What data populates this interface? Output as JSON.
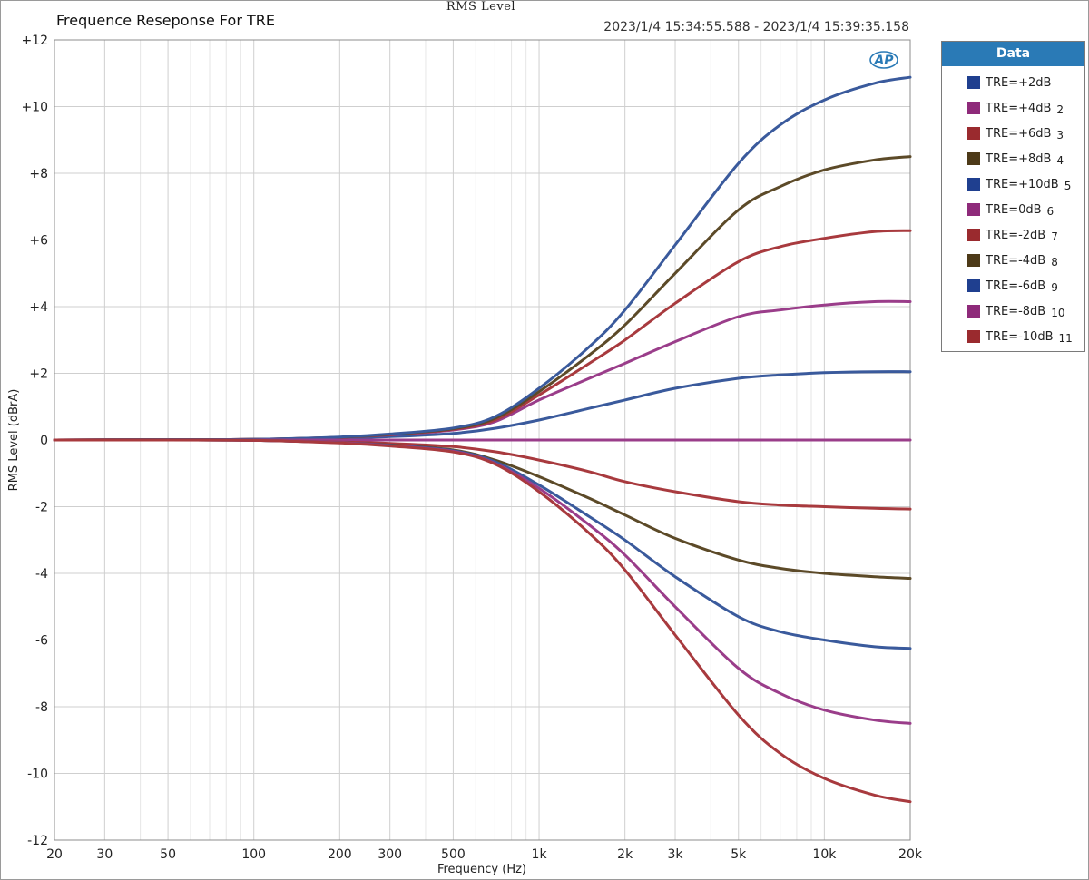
{
  "header": {
    "title": "Frequence Reseponse For TRE",
    "center_title": "RMS Level",
    "timestamp": "2023/1/4 15:34:55.588 - 2023/1/4 15:39:35.158",
    "logo_text": "AP"
  },
  "legend": {
    "title": "Data",
    "items": [
      {
        "label": "TRE=+2dB",
        "num": "",
        "color": "#1f3f8f"
      },
      {
        "label": "TRE=+4dB",
        "num": "2",
        "color": "#8e2a7a"
      },
      {
        "label": "TRE=+6dB",
        "num": "3",
        "color": "#9a2a2e"
      },
      {
        "label": "TRE=+8dB",
        "num": "4",
        "color": "#4d3a18"
      },
      {
        "label": "TRE=+10dB",
        "num": "5",
        "color": "#1f3f8f"
      },
      {
        "label": "TRE=0dB",
        "num": "6",
        "color": "#8e2a7a"
      },
      {
        "label": "TRE=-2dB",
        "num": "7",
        "color": "#9a2a2e"
      },
      {
        "label": "TRE=-4dB",
        "num": "8",
        "color": "#4d3a18"
      },
      {
        "label": "TRE=-6dB",
        "num": "9",
        "color": "#1f3f8f"
      },
      {
        "label": "TRE=-8dB",
        "num": "10",
        "color": "#8e2a7a"
      },
      {
        "label": "TRE=-10dB",
        "num": "11",
        "color": "#9a2a2e"
      }
    ]
  },
  "chart_data": {
    "type": "line",
    "title": "Frequence Reseponse For TRE",
    "xlabel": "Frequency (Hz)",
    "ylabel": "RMS Level (dBrA)",
    "x_scale": "log",
    "xlim": [
      20,
      20000
    ],
    "ylim": [
      -12,
      12
    ],
    "grid": true,
    "legend_position": "right",
    "x_ticks": [
      20,
      30,
      50,
      100,
      200,
      300,
      500,
      1000,
      2000,
      3000,
      5000,
      10000,
      20000
    ],
    "x_tick_labels": [
      "20",
      "30",
      "50",
      "100",
      "200",
      "300",
      "500",
      "1k",
      "2k",
      "3k",
      "5k",
      "10k",
      "20k"
    ],
    "y_ticks": [
      12,
      10,
      8,
      6,
      4,
      2,
      0,
      -2,
      -4,
      -6,
      -8,
      -10,
      -12
    ],
    "y_tick_labels": [
      "+12",
      "+10",
      "+8",
      "+6",
      "+4",
      "+2",
      "0",
      "-2",
      "-4",
      "-6",
      "-8",
      "-10",
      "-12"
    ],
    "x": [
      20,
      50,
      100,
      200,
      300,
      500,
      700,
      1000,
      1500,
      2000,
      3000,
      5000,
      7000,
      10000,
      15000,
      20000
    ],
    "series": [
      {
        "name": "TRE=+2dB",
        "color": "#3a5a9c",
        "values": [
          0,
          0.01,
          0.02,
          0.06,
          0.1,
          0.2,
          0.35,
          0.6,
          0.95,
          1.2,
          1.55,
          1.85,
          1.95,
          2.02,
          2.05,
          2.05
        ]
      },
      {
        "name": "TRE=+4dB",
        "color": "#9a3d8a",
        "values": [
          0,
          0.01,
          0.02,
          0.08,
          0.15,
          0.3,
          0.55,
          1.2,
          1.85,
          2.3,
          2.95,
          3.7,
          3.9,
          4.05,
          4.15,
          4.15
        ]
      },
      {
        "name": "TRE=+6dB",
        "color": "#a83a3e",
        "values": [
          0,
          0.01,
          0.02,
          0.08,
          0.16,
          0.32,
          0.6,
          1.35,
          2.3,
          3.0,
          4.1,
          5.35,
          5.8,
          6.05,
          6.25,
          6.28
        ]
      },
      {
        "name": "TRE=+8dB",
        "color": "#5c4a28",
        "values": [
          0,
          0.01,
          0.02,
          0.08,
          0.17,
          0.34,
          0.65,
          1.45,
          2.55,
          3.45,
          5.0,
          6.9,
          7.6,
          8.1,
          8.4,
          8.5
        ]
      },
      {
        "name": "TRE=+10dB",
        "color": "#3a5a9c",
        "values": [
          0,
          0.01,
          0.02,
          0.09,
          0.18,
          0.36,
          0.7,
          1.55,
          2.8,
          3.9,
          5.85,
          8.3,
          9.45,
          10.2,
          10.7,
          10.88
        ]
      },
      {
        "name": "TRE=0dB",
        "color": "#9a3d8a",
        "values": [
          0,
          0,
          0,
          0,
          0,
          0,
          0,
          0,
          0,
          0,
          0,
          0,
          0,
          0,
          0,
          0
        ]
      },
      {
        "name": "TRE=-2dB",
        "color": "#a83a3e",
        "values": [
          0,
          0,
          -0.01,
          -0.06,
          -0.1,
          -0.2,
          -0.35,
          -0.6,
          -0.95,
          -1.25,
          -1.55,
          -1.85,
          -1.95,
          -2.0,
          -2.05,
          -2.07
        ]
      },
      {
        "name": "TRE=-4dB",
        "color": "#5c4a28",
        "values": [
          0,
          0,
          -0.01,
          -0.08,
          -0.15,
          -0.3,
          -0.6,
          -1.1,
          -1.75,
          -2.25,
          -2.95,
          -3.6,
          -3.85,
          -4.0,
          -4.1,
          -4.15
        ]
      },
      {
        "name": "TRE=-6dB",
        "color": "#3a5a9c",
        "values": [
          0,
          0,
          -0.01,
          -0.08,
          -0.16,
          -0.32,
          -0.65,
          -1.35,
          -2.3,
          -3.0,
          -4.1,
          -5.3,
          -5.75,
          -6.0,
          -6.2,
          -6.25
        ]
      },
      {
        "name": "TRE=-8dB",
        "color": "#9a3d8a",
        "values": [
          0,
          0,
          -0.01,
          -0.08,
          -0.17,
          -0.34,
          -0.7,
          -1.45,
          -2.55,
          -3.45,
          -5.0,
          -6.85,
          -7.6,
          -8.1,
          -8.4,
          -8.5
        ]
      },
      {
        "name": "TRE=-10dB",
        "color": "#a83a3e",
        "values": [
          0,
          0,
          -0.01,
          -0.09,
          -0.18,
          -0.36,
          -0.72,
          -1.55,
          -2.8,
          -3.9,
          -5.85,
          -8.25,
          -9.4,
          -10.15,
          -10.65,
          -10.85
        ]
      }
    ]
  }
}
